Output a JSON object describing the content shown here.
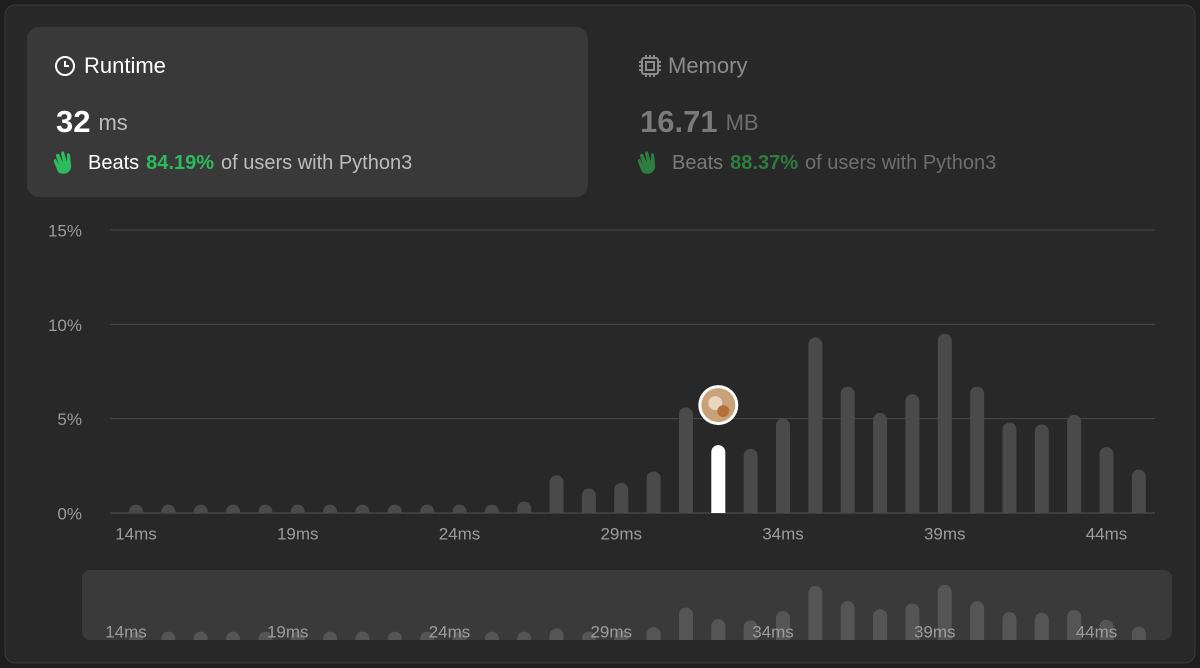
{
  "runtime": {
    "title": "Runtime",
    "value": "32",
    "unit": "ms",
    "beats": "Beats",
    "percent": "84.19%",
    "suffix": "of users with Python3"
  },
  "memory": {
    "title": "Memory",
    "value": "16.71",
    "unit": "MB",
    "beats": "Beats",
    "percent": "88.37%",
    "suffix": "of users with Python3"
  },
  "chart_data": {
    "type": "bar",
    "categories": [
      "14ms",
      null,
      null,
      null,
      null,
      "19ms",
      null,
      null,
      null,
      null,
      "24ms",
      null,
      null,
      null,
      null,
      "29ms",
      null,
      null,
      null,
      null,
      "34ms",
      null,
      null,
      null,
      null,
      "39ms",
      null,
      null,
      null,
      null,
      "44ms",
      null
    ],
    "values": [
      0.4,
      0.4,
      0.4,
      0.4,
      0.4,
      0.4,
      0.4,
      0.4,
      0.4,
      0.4,
      0.4,
      0.4,
      0.6,
      2.0,
      1.3,
      1.6,
      2.2,
      5.6,
      3.6,
      3.4,
      5.0,
      9.3,
      6.7,
      5.3,
      6.3,
      9.5,
      6.7,
      4.8,
      4.7,
      5.2,
      3.5,
      2.3
    ],
    "color": "#4a4a4a",
    "highlight_color": "#ffffff",
    "highlight_index": 18,
    "ylim": [
      0,
      15
    ],
    "yticks": [
      {
        "value": 0,
        "label": "0%"
      },
      {
        "value": 5,
        "label": "5%"
      },
      {
        "value": 10,
        "label": "10%"
      },
      {
        "value": 15,
        "label": "15%"
      }
    ],
    "grid": true
  }
}
